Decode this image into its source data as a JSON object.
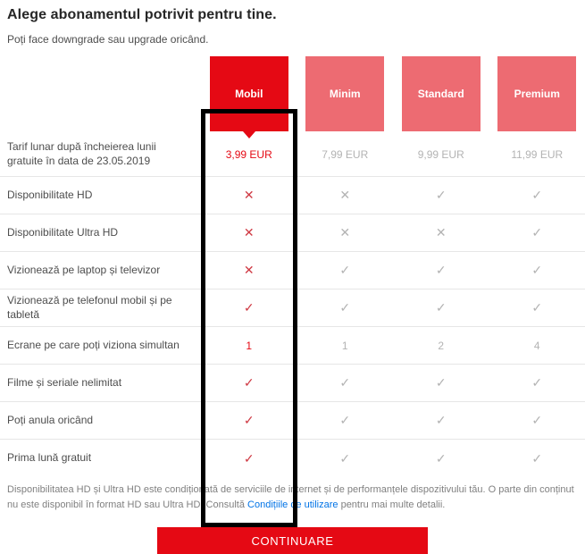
{
  "header": {
    "title": "Alege abonamentul potrivit pentru tine.",
    "subtitle": "Poți face downgrade sau upgrade oricând."
  },
  "plans": [
    {
      "name": "Mobil",
      "selected": true
    },
    {
      "name": "Minim",
      "selected": false
    },
    {
      "name": "Standard",
      "selected": false
    },
    {
      "name": "Premium",
      "selected": false
    }
  ],
  "table": {
    "rows": [
      {
        "label": "Tarif lunar după încheierea lunii gratuite în data de 23.05.2019",
        "values": [
          "3,99 EUR",
          "7,99 EUR",
          "9,99 EUR",
          "11,99 EUR"
        ]
      },
      {
        "label": "Disponibilitate HD",
        "values": [
          "✕",
          "✕",
          "✓",
          "✓"
        ]
      },
      {
        "label": "Disponibilitate Ultra HD",
        "values": [
          "✕",
          "✕",
          "✕",
          "✓"
        ]
      },
      {
        "label": "Vizionează pe laptop și televizor",
        "values": [
          "✕",
          "✓",
          "✓",
          "✓"
        ]
      },
      {
        "label": "Vizionează pe telefonul mobil și pe tabletă",
        "values": [
          "✓",
          "✓",
          "✓",
          "✓"
        ]
      },
      {
        "label": "Ecrane pe care poți viziona simultan",
        "values": [
          "1",
          "1",
          "2",
          "4"
        ]
      },
      {
        "label": "Filme și seriale nelimitat",
        "values": [
          "✓",
          "✓",
          "✓",
          "✓"
        ]
      },
      {
        "label": "Poți anula oricând",
        "values": [
          "✓",
          "✓",
          "✓",
          "✓"
        ]
      },
      {
        "label": "Prima lună gratuit",
        "values": [
          "✓",
          "✓",
          "✓",
          "✓"
        ]
      }
    ]
  },
  "footer": {
    "text_before_link": "Disponibilitatea HD și Ultra HD este condiționată de serviciile de internet și de performanțele dispozitivului tău. O parte din conținut nu este disponibil în format HD sau Ultra HD. Consultă ",
    "link_label": "Condițiile de utilizare",
    "text_after_link": " pentru mai multe detalii."
  },
  "cta": {
    "label": "CONTINUARE"
  },
  "colors": {
    "brand_red": "#e50914",
    "plan_pink": "#ed6b72",
    "inactive_gray": "#b3b3b3",
    "mark_red": "#cf3a44",
    "link_blue": "#0073e6",
    "frame_black": "#000000"
  }
}
